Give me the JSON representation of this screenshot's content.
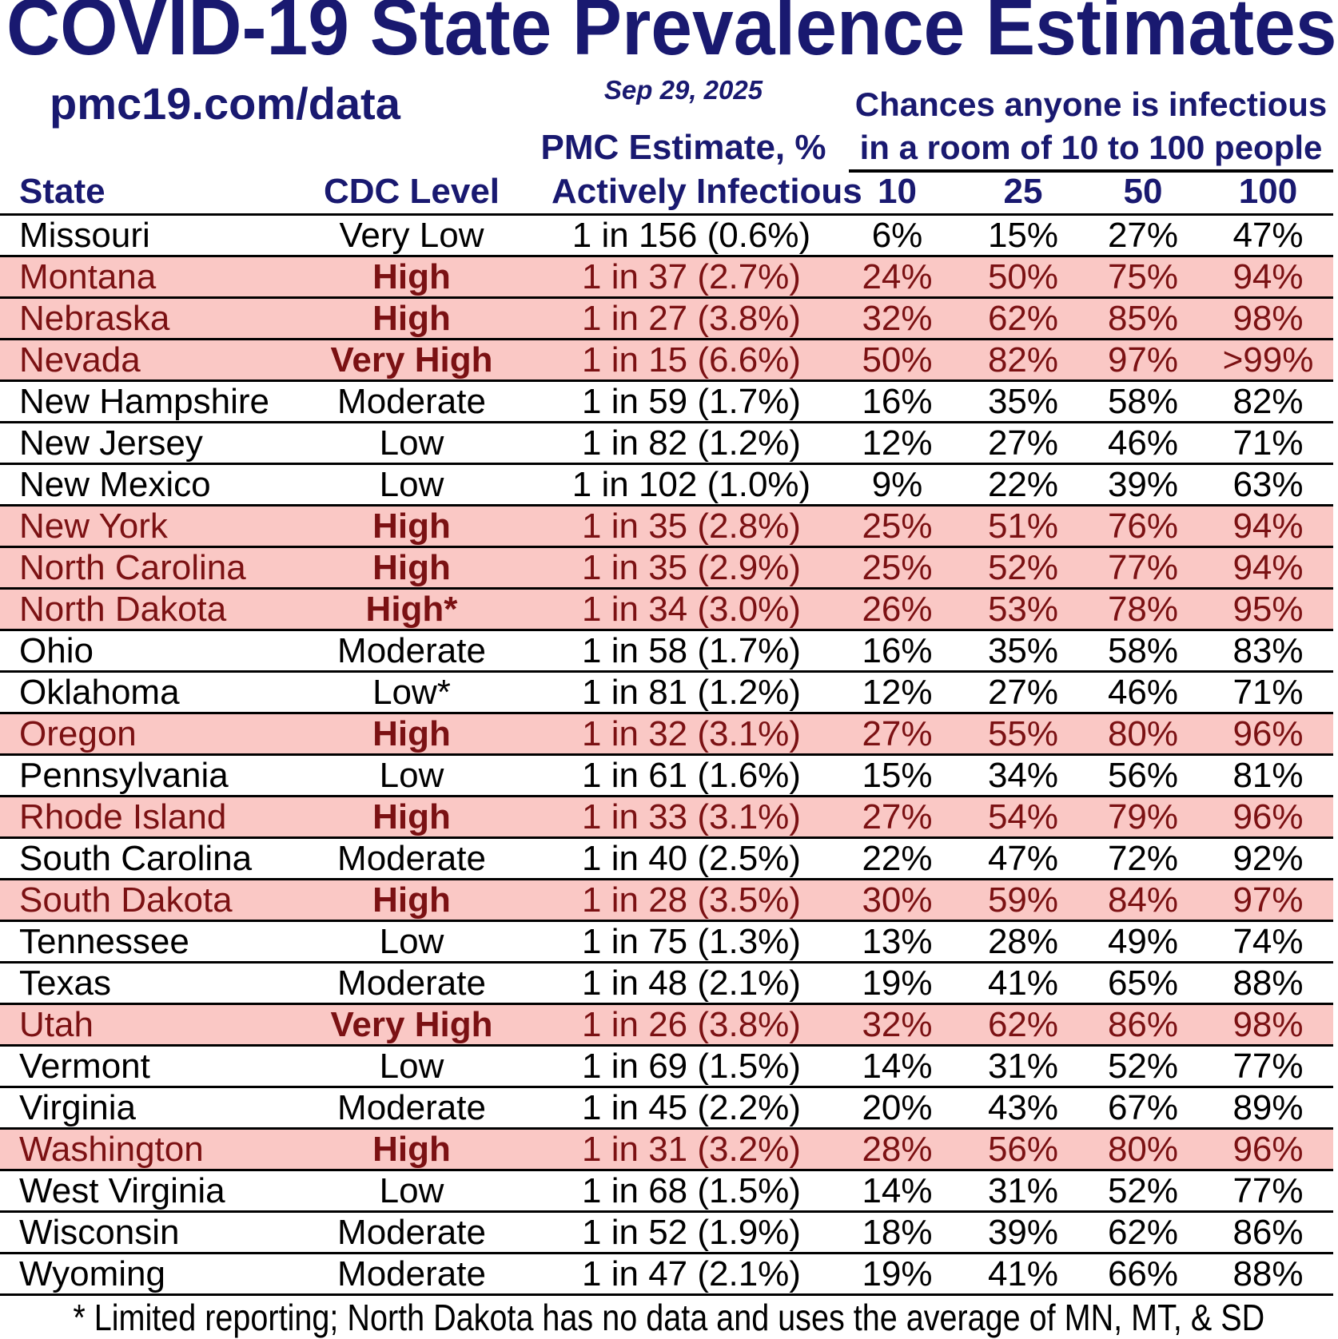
{
  "header": {
    "source_url": "pmc19.com/data",
    "date": "Sep 29, 2025",
    "pmc_header": {
      "line1": "PMC Estimate, %",
      "line2": "Actively Infectious"
    },
    "room_header": {
      "line1": "Chances anyone is infectious",
      "line2": "in a room of 10 to 100 people"
    },
    "columns": {
      "state": "State",
      "cdc_level": "CDC Level",
      "room_sizes": [
        "10",
        "25",
        "50",
        "100"
      ]
    }
  },
  "colors": {
    "navy": "#191970",
    "highlight_bg": "#fac8c5",
    "highlight_text": "#7b1113",
    "line": "#000000"
  },
  "chart_data": {
    "type": "table",
    "title": "COVID-19 State Prevalence Estimates",
    "columns": [
      "State",
      "CDC Level",
      "PMC Estimate, % Actively Infectious",
      "10",
      "25",
      "50",
      "100"
    ],
    "rows": [
      {
        "state": "Missouri",
        "cdc_level": "Very Low",
        "estimate": "1 in 156 (0.6%)",
        "p10": "6%",
        "p25": "15%",
        "p50": "27%",
        "p100": "47%",
        "highlighted": false
      },
      {
        "state": "Montana",
        "cdc_level": "High",
        "estimate": "1 in 37 (2.7%)",
        "p10": "24%",
        "p25": "50%",
        "p50": "75%",
        "p100": "94%",
        "highlighted": true
      },
      {
        "state": "Nebraska",
        "cdc_level": "High",
        "estimate": "1 in 27 (3.8%)",
        "p10": "32%",
        "p25": "62%",
        "p50": "85%",
        "p100": "98%",
        "highlighted": true
      },
      {
        "state": "Nevada",
        "cdc_level": "Very High",
        "estimate": "1 in 15 (6.6%)",
        "p10": "50%",
        "p25": "82%",
        "p50": "97%",
        "p100": ">99%",
        "highlighted": true
      },
      {
        "state": "New Hampshire",
        "cdc_level": "Moderate",
        "estimate": "1 in 59 (1.7%)",
        "p10": "16%",
        "p25": "35%",
        "p50": "58%",
        "p100": "82%",
        "highlighted": false
      },
      {
        "state": "New Jersey",
        "cdc_level": "Low",
        "estimate": "1 in 82 (1.2%)",
        "p10": "12%",
        "p25": "27%",
        "p50": "46%",
        "p100": "71%",
        "highlighted": false
      },
      {
        "state": "New Mexico",
        "cdc_level": "Low",
        "estimate": "1 in 102 (1.0%)",
        "p10": "9%",
        "p25": "22%",
        "p50": "39%",
        "p100": "63%",
        "highlighted": false
      },
      {
        "state": "New York",
        "cdc_level": "High",
        "estimate": "1 in 35 (2.8%)",
        "p10": "25%",
        "p25": "51%",
        "p50": "76%",
        "p100": "94%",
        "highlighted": true
      },
      {
        "state": "North Carolina",
        "cdc_level": "High",
        "estimate": "1 in 35 (2.9%)",
        "p10": "25%",
        "p25": "52%",
        "p50": "77%",
        "p100": "94%",
        "highlighted": true
      },
      {
        "state": "North Dakota",
        "cdc_level": "High*",
        "estimate": "1 in 34 (3.0%)",
        "p10": "26%",
        "p25": "53%",
        "p50": "78%",
        "p100": "95%",
        "highlighted": true
      },
      {
        "state": "Ohio",
        "cdc_level": "Moderate",
        "estimate": "1 in 58 (1.7%)",
        "p10": "16%",
        "p25": "35%",
        "p50": "58%",
        "p100": "83%",
        "highlighted": false
      },
      {
        "state": "Oklahoma",
        "cdc_level": "Low*",
        "estimate": "1 in 81 (1.2%)",
        "p10": "12%",
        "p25": "27%",
        "p50": "46%",
        "p100": "71%",
        "highlighted": false
      },
      {
        "state": "Oregon",
        "cdc_level": "High",
        "estimate": "1 in 32 (3.1%)",
        "p10": "27%",
        "p25": "55%",
        "p50": "80%",
        "p100": "96%",
        "highlighted": true
      },
      {
        "state": "Pennsylvania",
        "cdc_level": "Low",
        "estimate": "1 in 61 (1.6%)",
        "p10": "15%",
        "p25": "34%",
        "p50": "56%",
        "p100": "81%",
        "highlighted": false
      },
      {
        "state": "Rhode Island",
        "cdc_level": "High",
        "estimate": "1 in 33 (3.1%)",
        "p10": "27%",
        "p25": "54%",
        "p50": "79%",
        "p100": "96%",
        "highlighted": true
      },
      {
        "state": "South Carolina",
        "cdc_level": "Moderate",
        "estimate": "1 in 40 (2.5%)",
        "p10": "22%",
        "p25": "47%",
        "p50": "72%",
        "p100": "92%",
        "highlighted": false
      },
      {
        "state": "South Dakota",
        "cdc_level": "High",
        "estimate": "1 in 28 (3.5%)",
        "p10": "30%",
        "p25": "59%",
        "p50": "84%",
        "p100": "97%",
        "highlighted": true
      },
      {
        "state": "Tennessee",
        "cdc_level": "Low",
        "estimate": "1 in 75 (1.3%)",
        "p10": "13%",
        "p25": "28%",
        "p50": "49%",
        "p100": "74%",
        "highlighted": false
      },
      {
        "state": "Texas",
        "cdc_level": "Moderate",
        "estimate": "1 in 48 (2.1%)",
        "p10": "19%",
        "p25": "41%",
        "p50": "65%",
        "p100": "88%",
        "highlighted": false
      },
      {
        "state": "Utah",
        "cdc_level": "Very High",
        "estimate": "1 in 26 (3.8%)",
        "p10": "32%",
        "p25": "62%",
        "p50": "86%",
        "p100": "98%",
        "highlighted": true
      },
      {
        "state": "Vermont",
        "cdc_level": "Low",
        "estimate": "1 in 69 (1.5%)",
        "p10": "14%",
        "p25": "31%",
        "p50": "52%",
        "p100": "77%",
        "highlighted": false
      },
      {
        "state": "Virginia",
        "cdc_level": "Moderate",
        "estimate": "1 in 45 (2.2%)",
        "p10": "20%",
        "p25": "43%",
        "p50": "67%",
        "p100": "89%",
        "highlighted": false
      },
      {
        "state": "Washington",
        "cdc_level": "High",
        "estimate": "1 in 31 (3.2%)",
        "p10": "28%",
        "p25": "56%",
        "p50": "80%",
        "p100": "96%",
        "highlighted": true
      },
      {
        "state": "West Virginia",
        "cdc_level": "Low",
        "estimate": "1 in 68 (1.5%)",
        "p10": "14%",
        "p25": "31%",
        "p50": "52%",
        "p100": "77%",
        "highlighted": false
      },
      {
        "state": "Wisconsin",
        "cdc_level": "Moderate",
        "estimate": "1 in 52 (1.9%)",
        "p10": "18%",
        "p25": "39%",
        "p50": "62%",
        "p100": "86%",
        "highlighted": false
      },
      {
        "state": "Wyoming",
        "cdc_level": "Moderate",
        "estimate": "1 in 47 (2.1%)",
        "p10": "19%",
        "p25": "41%",
        "p50": "66%",
        "p100": "88%",
        "highlighted": false
      }
    ]
  },
  "footnote": "* Limited reporting; North Dakota has no data and uses the average of MN, MT, & SD"
}
